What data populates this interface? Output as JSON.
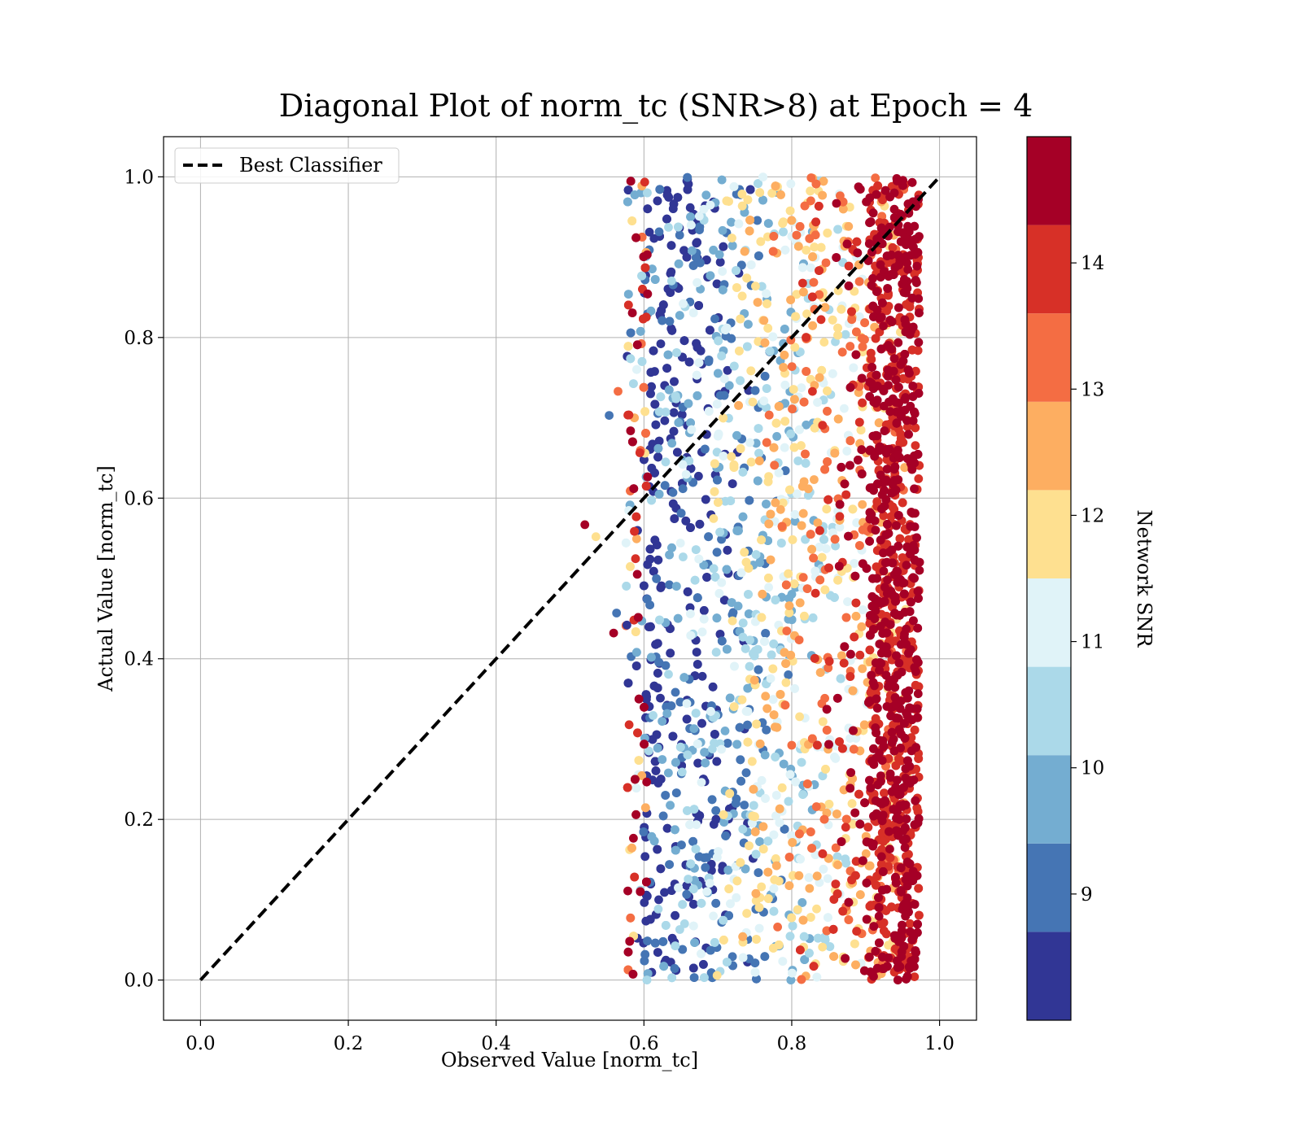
{
  "chart_data": {
    "type": "scatter",
    "title": "Diagonal Plot of norm_tc (SNR>8) at Epoch = 4",
    "xlabel": "Observed Value [norm_tc]",
    "ylabel": "Actual Value [norm_tc]",
    "xlim": [
      -0.05,
      1.05
    ],
    "ylim": [
      -0.05,
      1.05
    ],
    "xticks": [
      "0.0",
      "0.2",
      "0.4",
      "0.6",
      "0.8",
      "1.0"
    ],
    "yticks": [
      "0.0",
      "0.2",
      "0.4",
      "0.6",
      "0.8",
      "1.0"
    ],
    "grid": true,
    "legend": {
      "placement": "upper-left",
      "entries": [
        {
          "label": "Best Classifier",
          "style": "dashed",
          "color": "#000000"
        }
      ]
    },
    "reference_line": {
      "x": [
        0.0,
        1.0
      ],
      "y": [
        0.0,
        1.0
      ],
      "style": "dashed",
      "color": "#000000"
    },
    "scatter_distribution": {
      "description_note": "",
      "x_range_main": [
        0.6,
        0.97
      ],
      "y_range": [
        0.0,
        1.0
      ],
      "snr_trend": "higher SNR at larger observed values"
    },
    "outlier_points": [
      {
        "x": 0.52,
        "y": 0.567,
        "snr": 14.6
      },
      {
        "x": 0.535,
        "y": 0.552,
        "snr": 11.8
      },
      {
        "x": 0.553,
        "y": 0.703,
        "snr": 9.2
      },
      {
        "x": 0.565,
        "y": 0.733,
        "snr": 13.2
      },
      {
        "x": 0.563,
        "y": 0.457,
        "snr": 9.3
      },
      {
        "x": 0.559,
        "y": 0.432,
        "snr": 14.6
      },
      {
        "x": 0.577,
        "y": 0.442,
        "snr": 8.3
      }
    ],
    "colorbar": {
      "label": "Network SNR",
      "boundaries": [
        8,
        8.7,
        9.4,
        10.1,
        10.8,
        11.5,
        12.2,
        12.9,
        13.6,
        14.3,
        15
      ],
      "colors": [
        "#313695",
        "#4575b4",
        "#74add1",
        "#abd9e9",
        "#e0f3f8",
        "#fee090",
        "#fdae61",
        "#f46d43",
        "#d73027",
        "#a50026"
      ],
      "ticks": [
        "9",
        "10",
        "11",
        "12",
        "13",
        "14"
      ],
      "tick_values": [
        9,
        10,
        11,
        12,
        13,
        14
      ]
    }
  }
}
